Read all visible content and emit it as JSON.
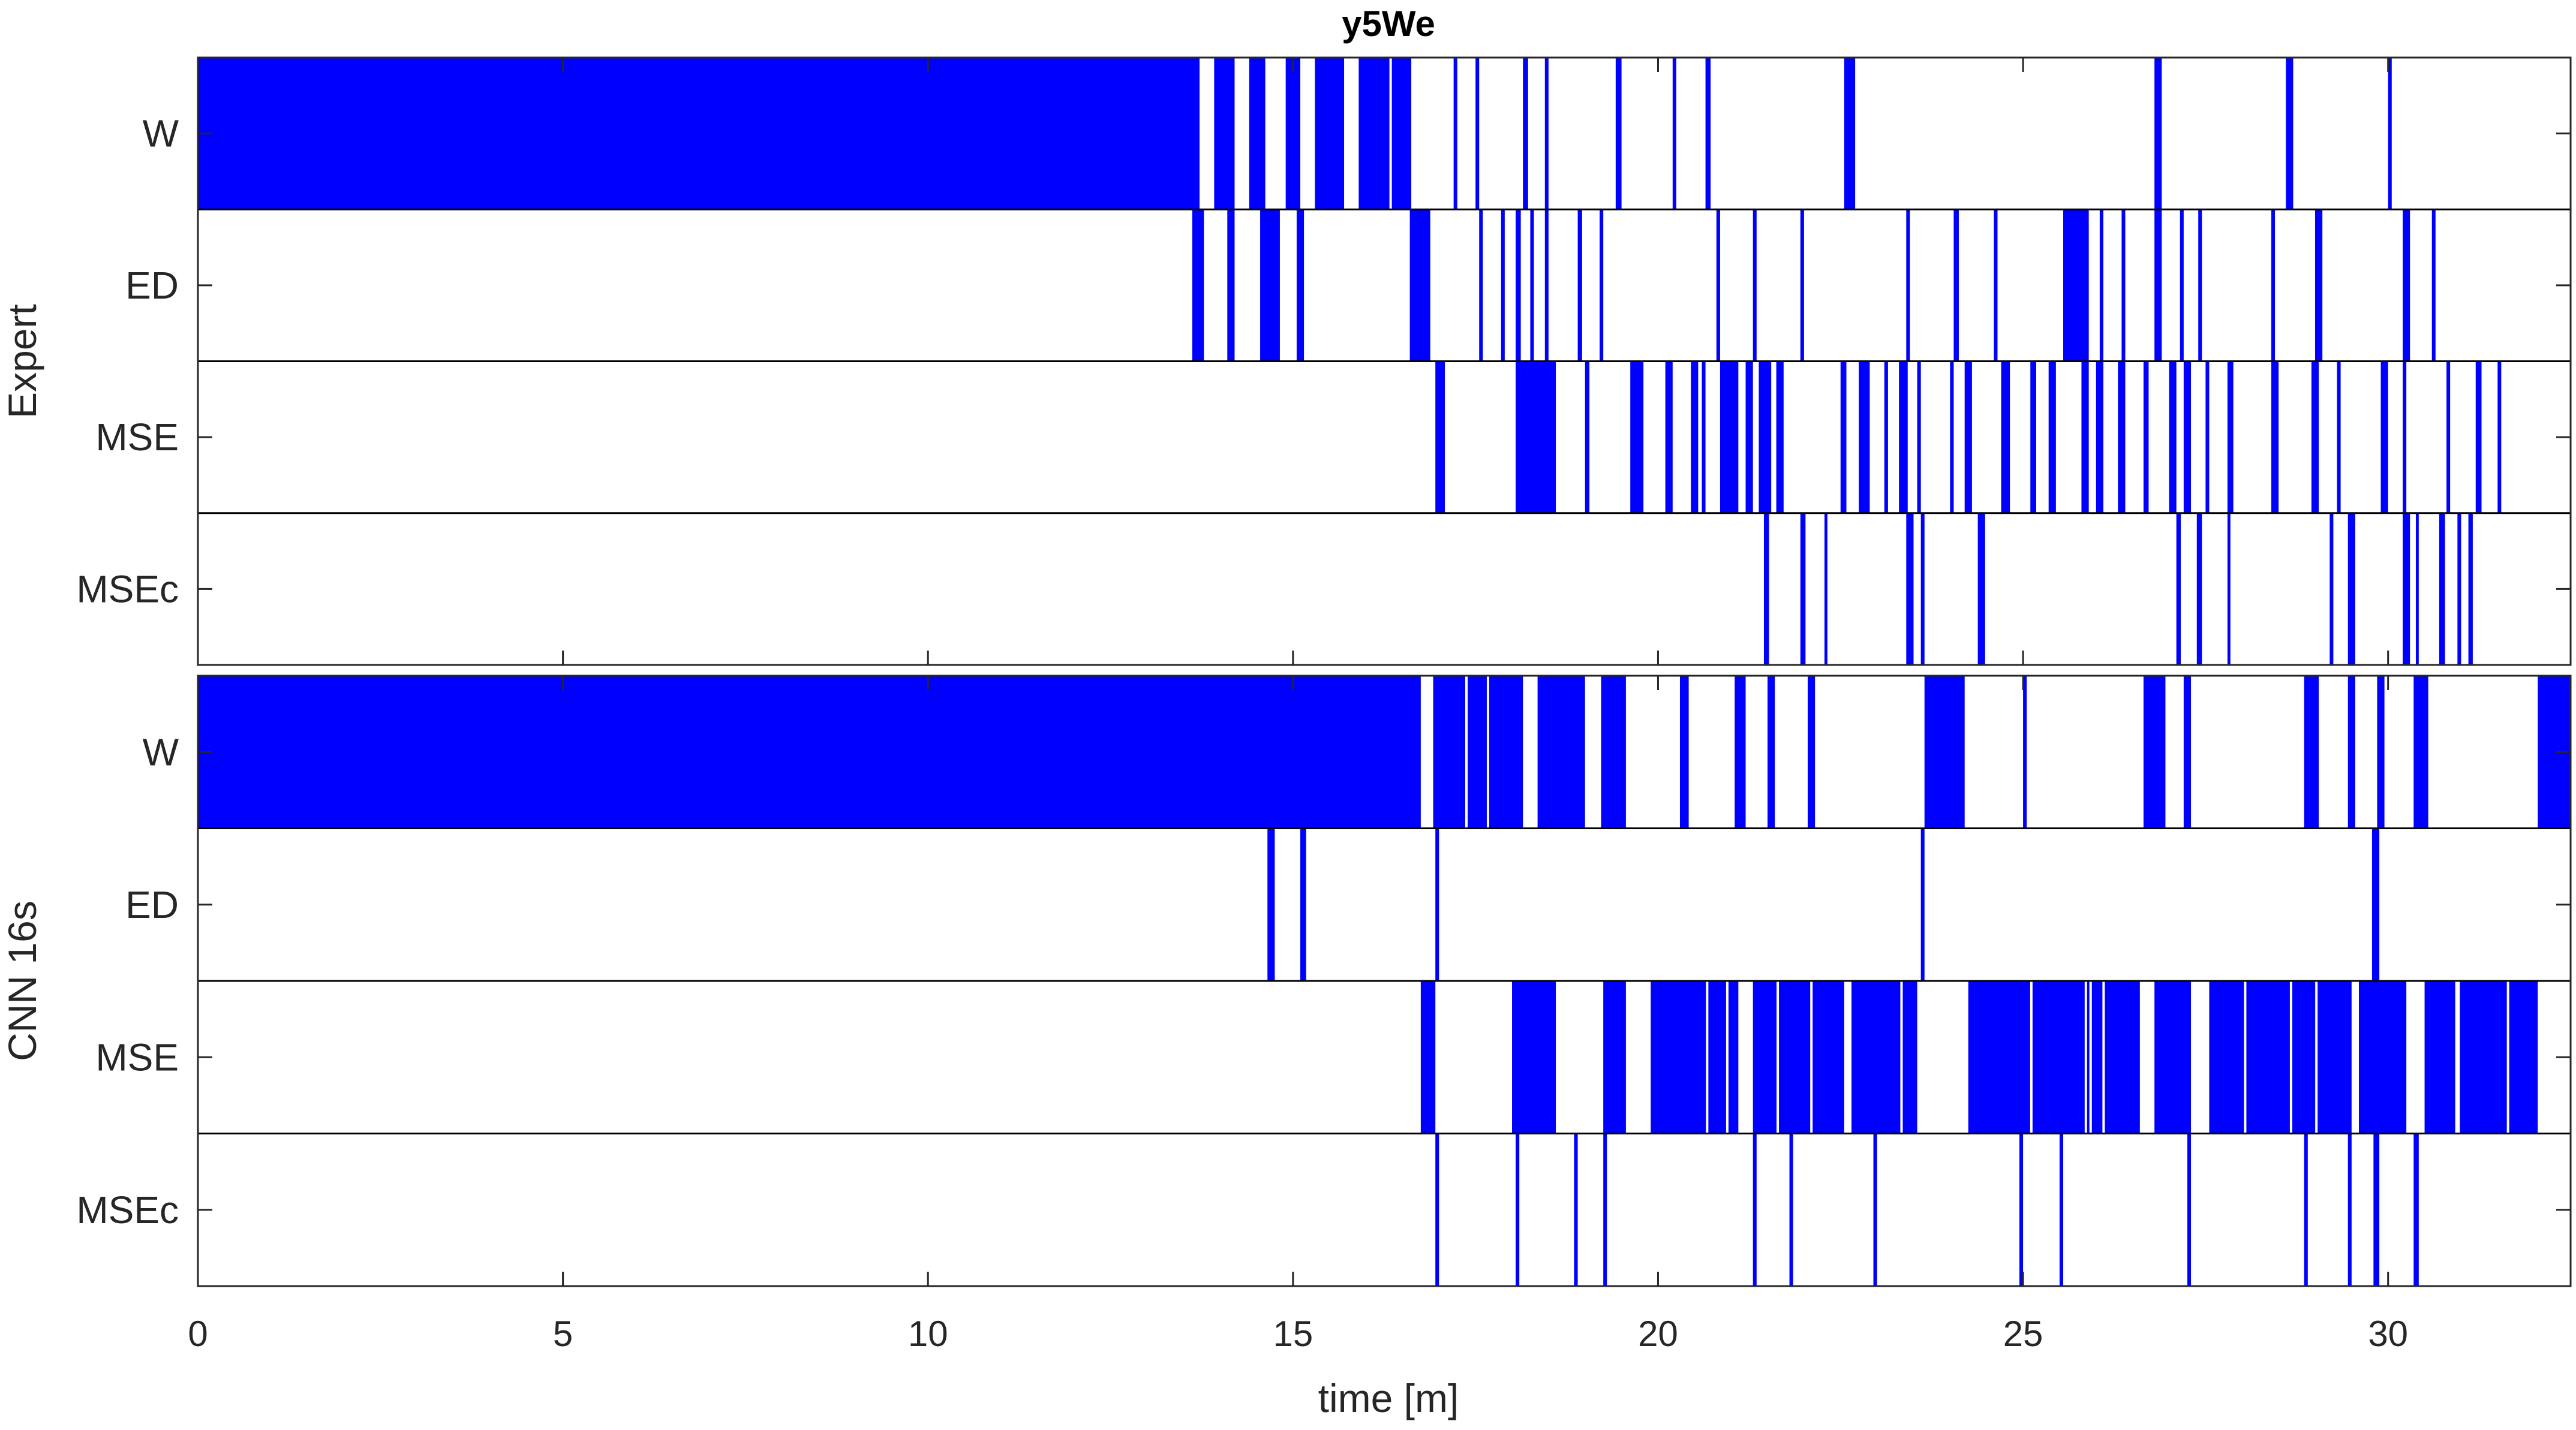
{
  "chart_data": {
    "type": "event-raster",
    "title": "y5We",
    "xlabel": "time [m]",
    "xlim": [
      0,
      32.5
    ],
    "xticks": [
      0,
      5,
      10,
      15,
      20,
      25,
      30
    ],
    "color": "#0000ff",
    "panels": [
      {
        "group_label": "Expert",
        "rows": [
          {
            "label": "W",
            "intervals": [
              [
                0,
                13.72
              ],
              [
                13.92,
                14.2
              ],
              [
                14.4,
                14.62
              ],
              [
                14.9,
                15.1
              ],
              [
                15.3,
                15.7
              ],
              [
                15.9,
                16.62
              ],
              [
                17.2,
                17.25
              ],
              [
                17.5,
                17.55
              ],
              [
                18.15,
                18.22
              ],
              [
                18.45,
                18.5
              ],
              [
                19.42,
                19.5
              ],
              [
                20.2,
                20.25
              ],
              [
                20.65,
                20.72
              ],
              [
                22.55,
                22.7
              ],
              [
                26.8,
                26.9
              ],
              [
                28.6,
                28.7
              ],
              [
                30.0,
                30.05
              ]
            ],
            "style": "dense-gaps"
          },
          {
            "label": "ED",
            "intervals": [
              [
                13.62,
                13.78
              ],
              [
                14.1,
                14.2
              ],
              [
                14.55,
                14.82
              ],
              [
                15.05,
                15.15
              ],
              [
                16.6,
                16.88
              ],
              [
                17.55,
                17.6
              ],
              [
                17.85,
                17.9
              ],
              [
                18.05,
                18.12
              ],
              [
                18.25,
                18.3
              ],
              [
                18.45,
                18.5
              ],
              [
                18.9,
                18.96
              ],
              [
                19.2,
                19.25
              ],
              [
                20.8,
                20.85
              ],
              [
                21.3,
                21.35
              ],
              [
                21.95,
                22.0
              ],
              [
                23.4,
                23.45
              ],
              [
                24.05,
                24.12
              ],
              [
                24.6,
                24.65
              ],
              [
                25.55,
                25.9
              ],
              [
                26.05,
                26.1
              ],
              [
                26.35,
                26.4
              ],
              [
                26.8,
                26.9
              ],
              [
                27.15,
                27.2
              ],
              [
                27.4,
                27.45
              ],
              [
                28.4,
                28.45
              ],
              [
                29.0,
                29.1
              ],
              [
                30.2,
                30.3
              ],
              [
                30.6,
                30.65
              ]
            ],
            "style": "sparse"
          },
          {
            "label": "MSE",
            "intervals": [
              [
                16.95,
                17.08
              ],
              [
                18.05,
                18.6
              ],
              [
                19.0,
                19.06
              ],
              [
                19.62,
                19.8
              ],
              [
                20.1,
                20.2
              ],
              [
                20.45,
                20.55
              ],
              [
                20.6,
                20.65
              ],
              [
                20.85,
                21.1
              ],
              [
                21.2,
                21.3
              ],
              [
                21.38,
                21.55
              ],
              [
                21.62,
                21.72
              ],
              [
                22.5,
                22.58
              ],
              [
                22.75,
                22.9
              ],
              [
                23.1,
                23.15
              ],
              [
                23.3,
                23.42
              ],
              [
                23.55,
                23.6
              ],
              [
                24.0,
                24.05
              ],
              [
                24.2,
                24.3
              ],
              [
                24.7,
                24.82
              ],
              [
                25.1,
                25.18
              ],
              [
                25.35,
                25.45
              ],
              [
                25.8,
                25.9
              ],
              [
                26.0,
                26.1
              ],
              [
                26.3,
                26.4
              ],
              [
                26.65,
                26.72
              ],
              [
                27.0,
                27.1
              ],
              [
                27.2,
                27.3
              ],
              [
                27.5,
                27.55
              ],
              [
                27.8,
                27.88
              ],
              [
                28.4,
                28.5
              ],
              [
                28.95,
                29.05
              ],
              [
                29.3,
                29.35
              ],
              [
                29.9,
                30.0
              ],
              [
                30.2,
                30.25
              ],
              [
                30.8,
                30.85
              ],
              [
                31.2,
                31.28
              ],
              [
                31.5,
                31.55
              ]
            ],
            "style": "dense-gaps"
          },
          {
            "label": "MSEc",
            "intervals": [
              [
                21.45,
                21.52
              ],
              [
                21.95,
                22.02
              ],
              [
                22.28,
                22.32
              ],
              [
                23.4,
                23.5
              ],
              [
                23.6,
                23.65
              ],
              [
                24.38,
                24.48
              ],
              [
                27.1,
                27.16
              ],
              [
                27.38,
                27.45
              ],
              [
                27.8,
                27.84
              ],
              [
                29.2,
                29.25
              ],
              [
                29.45,
                29.55
              ],
              [
                30.2,
                30.3
              ],
              [
                30.38,
                30.42
              ],
              [
                30.7,
                30.78
              ],
              [
                30.95,
                31.0
              ],
              [
                31.1,
                31.16
              ]
            ],
            "style": "sparse"
          }
        ]
      },
      {
        "group_label": "CNN 16s",
        "rows": [
          {
            "label": "W",
            "intervals": [
              [
                0,
                16.75
              ],
              [
                16.92,
                18.15
              ],
              [
                18.35,
                19.0
              ],
              [
                19.22,
                19.56
              ],
              [
                20.3,
                20.42
              ],
              [
                21.05,
                21.2
              ],
              [
                21.5,
                21.6
              ],
              [
                22.05,
                22.15
              ],
              [
                23.65,
                24.2
              ],
              [
                25.0,
                25.05
              ],
              [
                26.65,
                26.95
              ],
              [
                27.2,
                27.3
              ],
              [
                28.85,
                29.05
              ],
              [
                29.45,
                29.55
              ],
              [
                29.85,
                29.95
              ],
              [
                30.35,
                30.55
              ],
              [
                32.05,
                32.5
              ]
            ],
            "style": "dense-gaps"
          },
          {
            "label": "ED",
            "intervals": [
              [
                14.65,
                14.75
              ],
              [
                15.1,
                15.18
              ],
              [
                16.95,
                17.0
              ],
              [
                23.6,
                23.65
              ],
              [
                29.78,
                29.88
              ]
            ],
            "style": "sparse"
          },
          {
            "label": "MSE",
            "intervals": [
              [
                16.75,
                16.95
              ],
              [
                18.0,
                18.6
              ],
              [
                19.25,
                19.56
              ],
              [
                19.9,
                21.1
              ],
              [
                21.3,
                22.55
              ],
              [
                22.65,
                23.55
              ],
              [
                24.25,
                26.6
              ],
              [
                26.8,
                27.3
              ],
              [
                27.55,
                29.5
              ],
              [
                29.6,
                30.25
              ],
              [
                30.5,
                32.05
              ]
            ],
            "style": "dense-gaps"
          },
          {
            "label": "MSEc",
            "intervals": [
              [
                16.95,
                17.0
              ],
              [
                18.05,
                18.1
              ],
              [
                18.85,
                18.9
              ],
              [
                19.25,
                19.3
              ],
              [
                21.3,
                21.35
              ],
              [
                21.8,
                21.85
              ],
              [
                22.95,
                23.0
              ],
              [
                24.95,
                25.0
              ],
              [
                25.5,
                25.55
              ],
              [
                27.25,
                27.3
              ],
              [
                28.85,
                28.9
              ],
              [
                29.45,
                29.5
              ],
              [
                29.8,
                29.88
              ],
              [
                30.35,
                30.42
              ]
            ],
            "style": "sparse"
          }
        ]
      }
    ]
  }
}
